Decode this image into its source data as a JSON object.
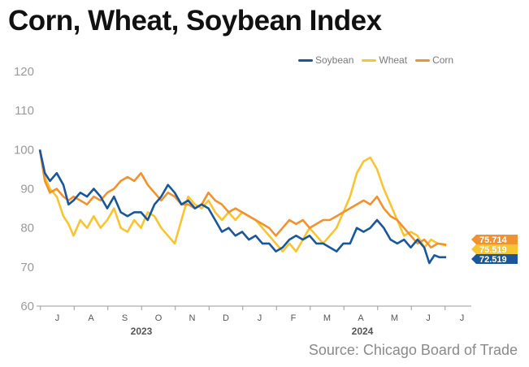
{
  "title": "Corn, Wheat, Soybean Index",
  "source": "Source: Chicago Board of Trade",
  "chart_data": {
    "type": "line",
    "ylim": [
      60,
      120
    ],
    "yticks": [
      60,
      70,
      80,
      90,
      100,
      110,
      120
    ],
    "xtick_labels": [
      "J",
      "A",
      "S",
      "O",
      "N",
      "D",
      "J",
      "F",
      "M",
      "A",
      "M",
      "J",
      "J"
    ],
    "year_labels": [
      "2023",
      "2024"
    ],
    "legend_position": "top-right",
    "grid": false,
    "series": [
      {
        "name": "Soybean",
        "color": "#1a5799",
        "end_label": "72.519",
        "points": [
          [
            0,
            100
          ],
          [
            0.15,
            94
          ],
          [
            0.3,
            92
          ],
          [
            0.5,
            94
          ],
          [
            0.7,
            91
          ],
          [
            0.85,
            86
          ],
          [
            1.0,
            87
          ],
          [
            1.2,
            89
          ],
          [
            1.4,
            88
          ],
          [
            1.6,
            90
          ],
          [
            1.8,
            88
          ],
          [
            2.0,
            85
          ],
          [
            2.2,
            88
          ],
          [
            2.4,
            84
          ],
          [
            2.6,
            83
          ],
          [
            2.8,
            84
          ],
          [
            3.0,
            84
          ],
          [
            3.2,
            82
          ],
          [
            3.4,
            86
          ],
          [
            3.6,
            88
          ],
          [
            3.8,
            91
          ],
          [
            4.0,
            89
          ],
          [
            4.2,
            86
          ],
          [
            4.4,
            87
          ],
          [
            4.6,
            85
          ],
          [
            4.8,
            86
          ],
          [
            5.0,
            85
          ],
          [
            5.2,
            82
          ],
          [
            5.4,
            79
          ],
          [
            5.6,
            80
          ],
          [
            5.8,
            78
          ],
          [
            6.0,
            79
          ],
          [
            6.2,
            77
          ],
          [
            6.4,
            78
          ],
          [
            6.6,
            76
          ],
          [
            6.8,
            76
          ],
          [
            7.0,
            74
          ],
          [
            7.2,
            75
          ],
          [
            7.4,
            77
          ],
          [
            7.6,
            78
          ],
          [
            7.8,
            77
          ],
          [
            8.0,
            78
          ],
          [
            8.2,
            76
          ],
          [
            8.4,
            76
          ],
          [
            8.6,
            75
          ],
          [
            8.8,
            74
          ],
          [
            9.0,
            76
          ],
          [
            9.2,
            76
          ],
          [
            9.4,
            80
          ],
          [
            9.6,
            79
          ],
          [
            9.8,
            80
          ],
          [
            10.0,
            82
          ],
          [
            10.2,
            80
          ],
          [
            10.4,
            77
          ],
          [
            10.6,
            76
          ],
          [
            10.8,
            77
          ],
          [
            11.0,
            75
          ],
          [
            11.2,
            77
          ],
          [
            11.4,
            75
          ],
          [
            11.55,
            71
          ],
          [
            11.7,
            73
          ],
          [
            11.85,
            72.5
          ],
          [
            12.05,
            72.5
          ]
        ]
      },
      {
        "name": "Wheat",
        "color": "#f7c531",
        "end_label": "75.519",
        "points": [
          [
            0,
            100
          ],
          [
            0.15,
            93
          ],
          [
            0.3,
            90
          ],
          [
            0.5,
            88
          ],
          [
            0.7,
            83
          ],
          [
            0.85,
            81
          ],
          [
            1.0,
            78
          ],
          [
            1.2,
            82
          ],
          [
            1.4,
            80
          ],
          [
            1.6,
            83
          ],
          [
            1.8,
            80
          ],
          [
            2.0,
            82
          ],
          [
            2.2,
            85
          ],
          [
            2.4,
            80
          ],
          [
            2.6,
            79
          ],
          [
            2.8,
            82
          ],
          [
            3.0,
            80
          ],
          [
            3.2,
            84
          ],
          [
            3.4,
            83
          ],
          [
            3.6,
            80
          ],
          [
            3.8,
            78
          ],
          [
            4.0,
            76
          ],
          [
            4.2,
            82
          ],
          [
            4.4,
            88
          ],
          [
            4.6,
            86
          ],
          [
            4.8,
            85
          ],
          [
            5.0,
            87
          ],
          [
            5.2,
            84
          ],
          [
            5.4,
            82
          ],
          [
            5.6,
            84
          ],
          [
            5.8,
            82
          ],
          [
            6.0,
            84
          ],
          [
            6.2,
            83
          ],
          [
            6.4,
            82
          ],
          [
            6.6,
            80
          ],
          [
            6.8,
            78
          ],
          [
            7.0,
            76
          ],
          [
            7.2,
            74
          ],
          [
            7.4,
            76
          ],
          [
            7.6,
            74
          ],
          [
            7.8,
            77
          ],
          [
            8.0,
            80
          ],
          [
            8.2,
            78
          ],
          [
            8.4,
            76
          ],
          [
            8.6,
            78
          ],
          [
            8.8,
            80
          ],
          [
            9.0,
            84
          ],
          [
            9.2,
            88
          ],
          [
            9.4,
            94
          ],
          [
            9.6,
            97
          ],
          [
            9.8,
            98
          ],
          [
            10.0,
            95
          ],
          [
            10.2,
            90
          ],
          [
            10.4,
            86
          ],
          [
            10.6,
            82
          ],
          [
            10.8,
            78
          ],
          [
            11.0,
            79
          ],
          [
            11.2,
            78
          ],
          [
            11.4,
            75
          ],
          [
            11.6,
            77
          ],
          [
            11.8,
            76
          ],
          [
            12.05,
            75.5
          ]
        ]
      },
      {
        "name": "Corn",
        "color": "#f0922f",
        "end_label": "75.714",
        "points": [
          [
            0,
            100
          ],
          [
            0.15,
            92
          ],
          [
            0.3,
            89
          ],
          [
            0.5,
            90
          ],
          [
            0.7,
            88
          ],
          [
            0.85,
            87
          ],
          [
            1.0,
            88
          ],
          [
            1.2,
            87
          ],
          [
            1.4,
            86
          ],
          [
            1.6,
            88
          ],
          [
            1.8,
            87
          ],
          [
            2.0,
            89
          ],
          [
            2.2,
            90
          ],
          [
            2.4,
            92
          ],
          [
            2.6,
            93
          ],
          [
            2.8,
            92
          ],
          [
            3.0,
            94
          ],
          [
            3.2,
            91
          ],
          [
            3.4,
            89
          ],
          [
            3.6,
            87
          ],
          [
            3.8,
            89
          ],
          [
            4.0,
            88
          ],
          [
            4.2,
            86
          ],
          [
            4.4,
            86
          ],
          [
            4.6,
            85
          ],
          [
            4.8,
            86
          ],
          [
            5.0,
            89
          ],
          [
            5.2,
            87
          ],
          [
            5.4,
            86
          ],
          [
            5.6,
            84
          ],
          [
            5.8,
            85
          ],
          [
            6.0,
            84
          ],
          [
            6.2,
            83
          ],
          [
            6.4,
            82
          ],
          [
            6.6,
            81
          ],
          [
            6.8,
            80
          ],
          [
            7.0,
            78
          ],
          [
            7.2,
            80
          ],
          [
            7.4,
            82
          ],
          [
            7.6,
            81
          ],
          [
            7.8,
            82
          ],
          [
            8.0,
            80
          ],
          [
            8.2,
            81
          ],
          [
            8.4,
            82
          ],
          [
            8.6,
            82
          ],
          [
            8.8,
            83
          ],
          [
            9.0,
            84
          ],
          [
            9.2,
            85
          ],
          [
            9.4,
            86
          ],
          [
            9.6,
            87
          ],
          [
            9.8,
            86
          ],
          [
            10.0,
            88
          ],
          [
            10.2,
            85
          ],
          [
            10.4,
            83
          ],
          [
            10.6,
            82
          ],
          [
            10.8,
            80
          ],
          [
            11.0,
            78
          ],
          [
            11.2,
            76
          ],
          [
            11.4,
            77
          ],
          [
            11.6,
            75
          ],
          [
            11.8,
            76
          ],
          [
            12.05,
            75.7
          ]
        ]
      }
    ]
  }
}
